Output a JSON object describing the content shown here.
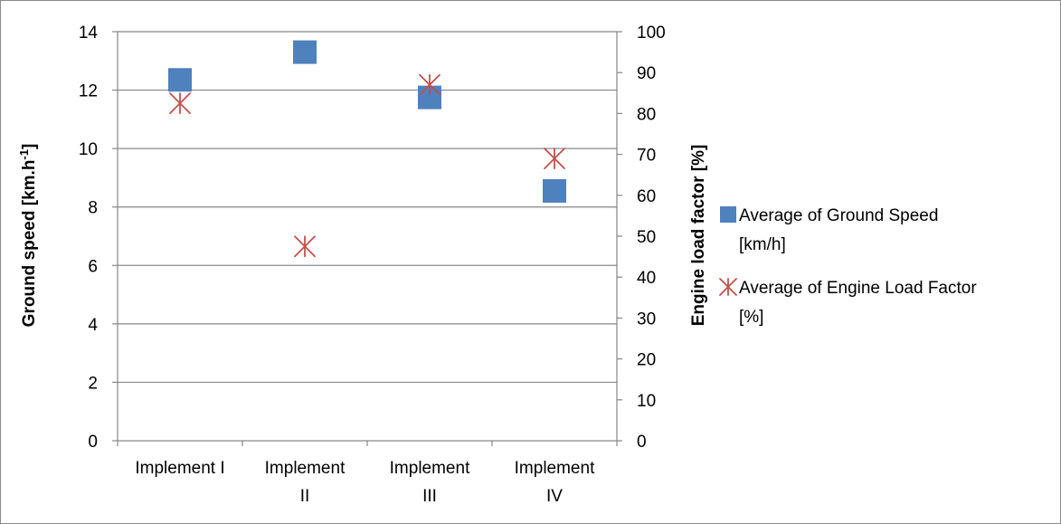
{
  "chart_data": {
    "type": "scatter",
    "categories": [
      "Implement I",
      "Implement II",
      "Implement III",
      "Implement IV"
    ],
    "category_lines": [
      [
        "Implement I"
      ],
      [
        "Implement",
        "II"
      ],
      [
        "Implement",
        "III"
      ],
      [
        "Implement",
        "IV"
      ]
    ],
    "series": [
      {
        "name_lines": [
          "Average of Ground Speed",
          "[km/h]"
        ],
        "axis": "left",
        "marker": "square",
        "color": "#4f81bd",
        "values": [
          12.35,
          13.3,
          11.75,
          8.55
        ]
      },
      {
        "name_lines": [
          "Average of  Engine Load Factor",
          "[%]"
        ],
        "axis": "right",
        "marker": "asterisk",
        "color": "#c0504d",
        "values": [
          82.5,
          47.5,
          87,
          69
        ]
      }
    ],
    "left_axis": {
      "title": "Ground speed [km.h",
      "title_sup": "-1",
      "title_end": "]",
      "ylim": [
        0,
        14
      ],
      "ticks": [
        "0",
        "2",
        "4",
        "6",
        "8",
        "10",
        "12",
        "14"
      ]
    },
    "right_axis": {
      "title": "Engine load factor [%]",
      "ylim": [
        0,
        100
      ],
      "ticks": [
        "0",
        "10",
        "20",
        "30",
        "40",
        "50",
        "60",
        "70",
        "80",
        "90",
        "100"
      ]
    },
    "grid": true,
    "legend_position": "right"
  },
  "colors": {
    "grid": "#878787",
    "axis": "#878787"
  }
}
